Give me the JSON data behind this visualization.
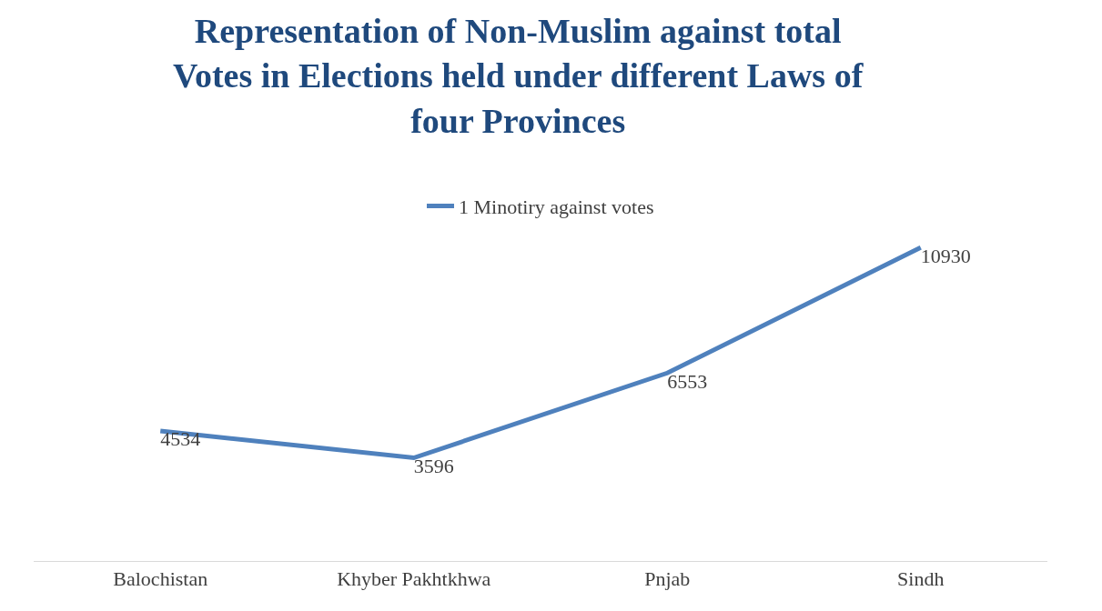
{
  "chart_data": {
    "type": "line",
    "title": "Representation of Non-Muslim against total\nVotes in Elections held under different Laws of\nfour Provinces",
    "categories": [
      "Balochistan",
      "Khyber Pakhtkhwa",
      "Pnjab",
      "Sindh"
    ],
    "series": [
      {
        "name": "1 Minotiry against votes",
        "color": "#4f81bd",
        "values": [
          4534,
          3596,
          6553,
          10930
        ]
      }
    ],
    "data_labels": true,
    "legend": "top",
    "marker": "none",
    "line_style": "solid"
  }
}
